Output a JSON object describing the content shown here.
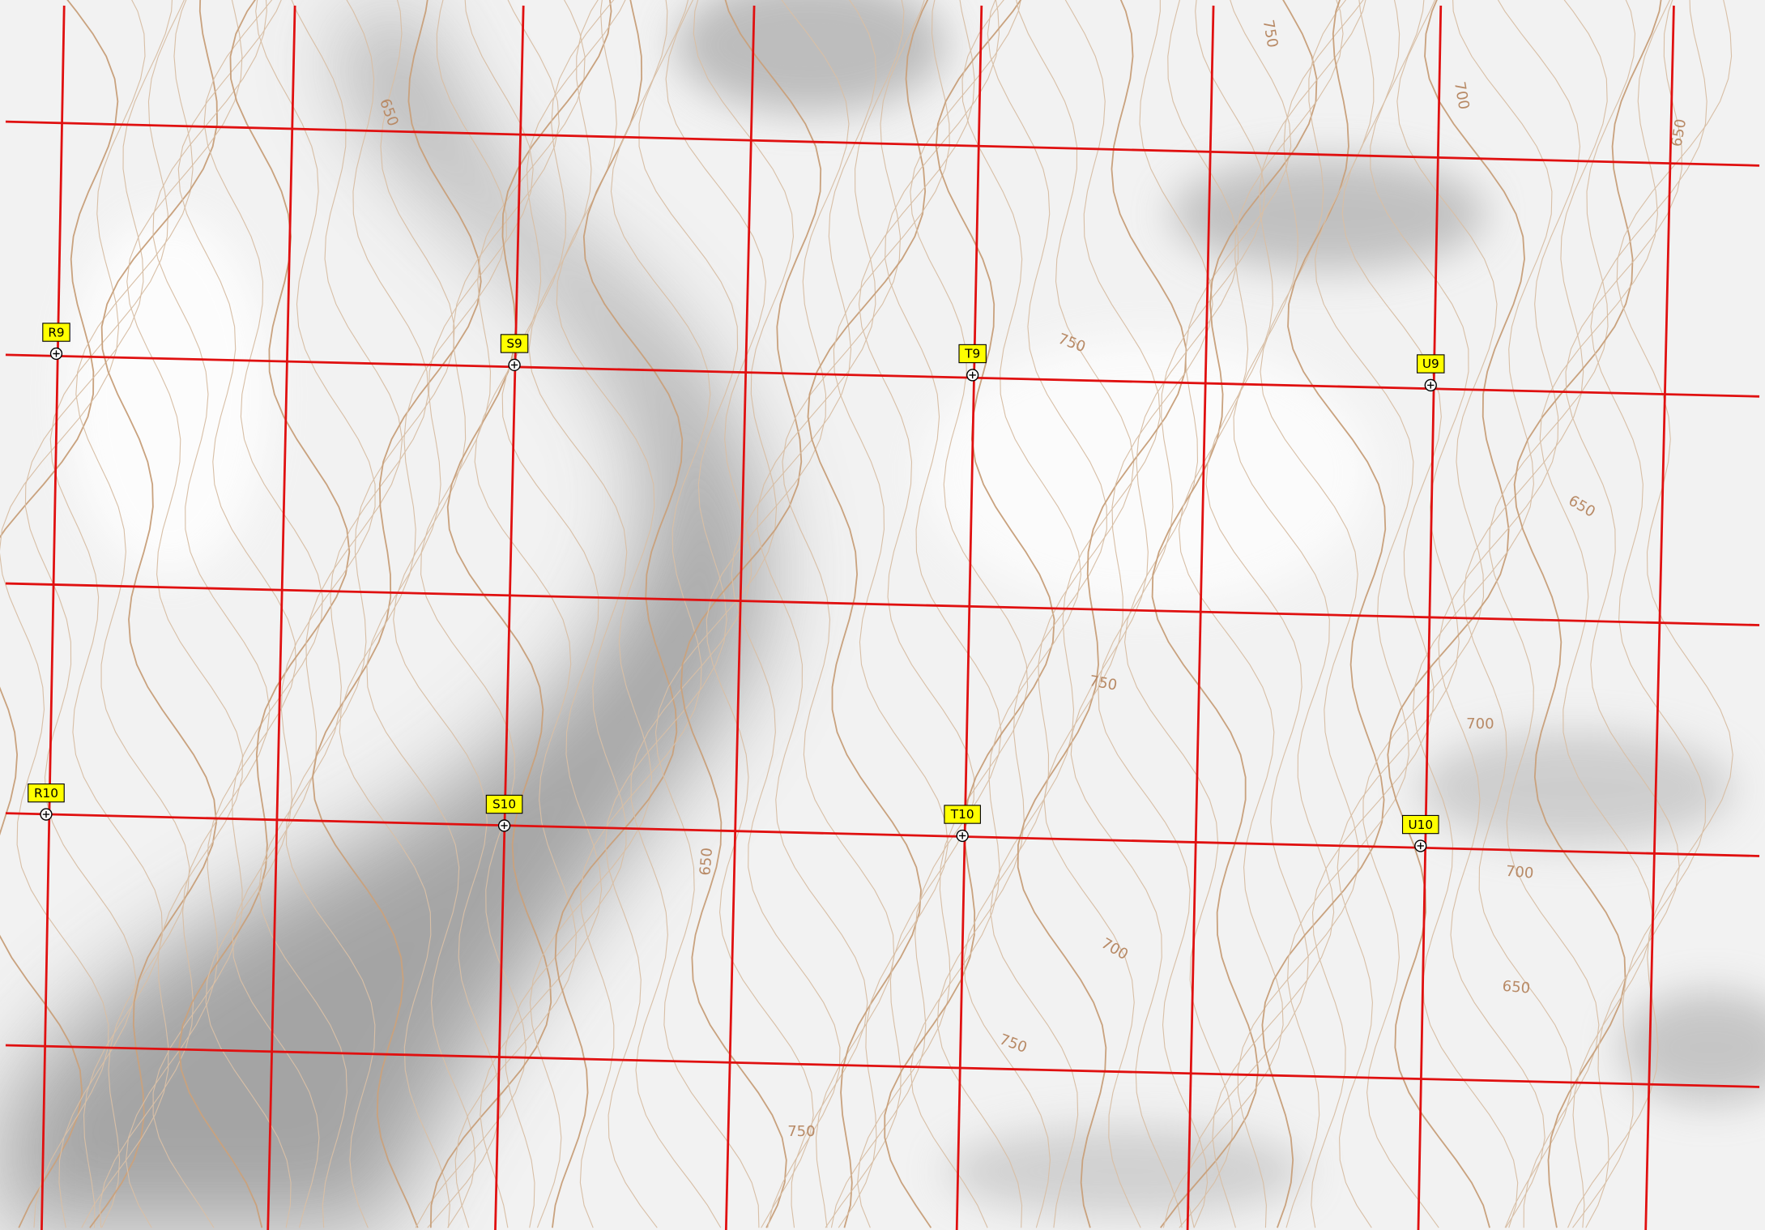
{
  "markers": [
    {
      "label": "R9"
    },
    {
      "label": "S9"
    },
    {
      "label": "T9"
    },
    {
      "label": "U9"
    },
    {
      "label": "R10"
    },
    {
      "label": "S10"
    },
    {
      "label": "T10"
    },
    {
      "label": "U10"
    }
  ],
  "contour_labels": [
    650,
    750,
    700,
    650,
    750,
    650,
    750,
    700,
    700,
    650,
    700,
    650,
    750,
    750
  ]
}
